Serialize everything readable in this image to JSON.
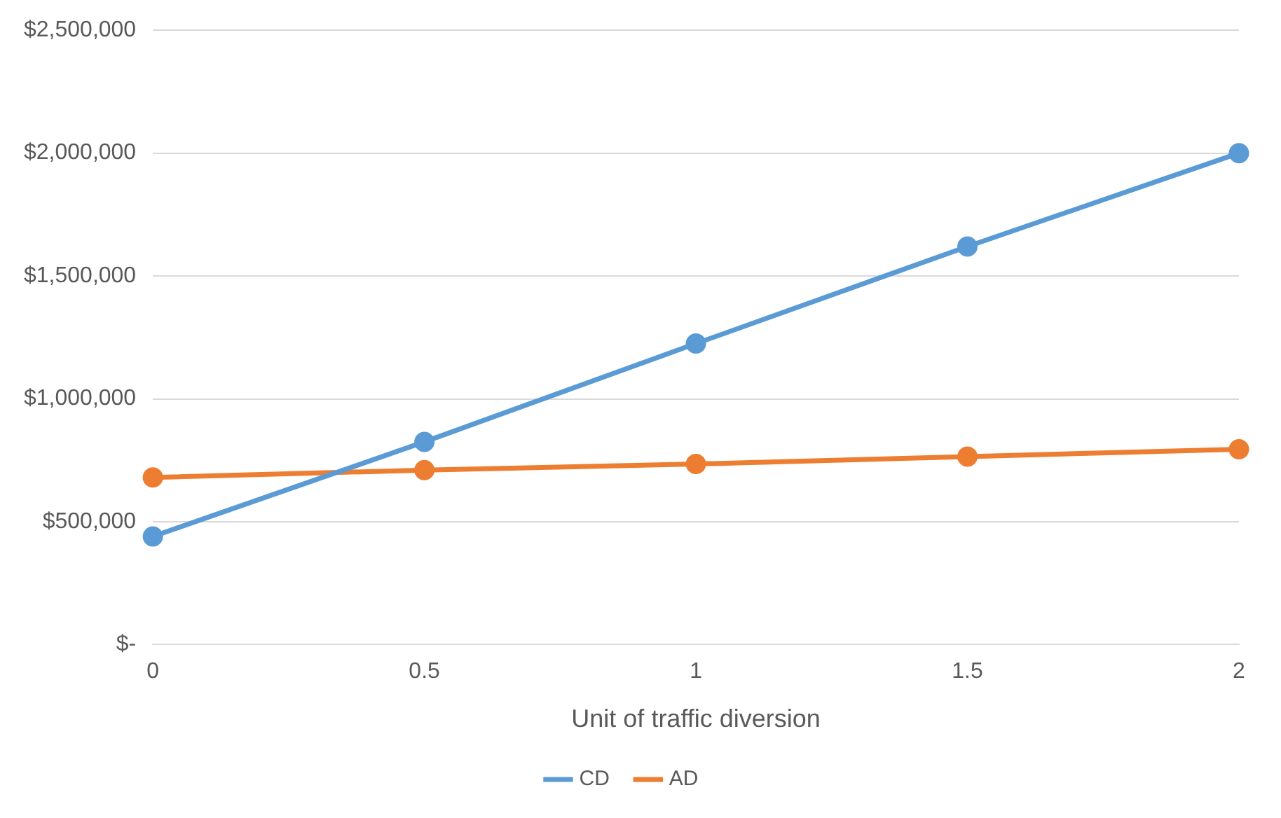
{
  "chart_data": {
    "type": "line",
    "xlabel": "Unit of traffic diversion",
    "categories": [
      "0",
      "0.5",
      "1",
      "1.5",
      "2"
    ],
    "series": [
      {
        "name": "CD",
        "color": "#5b9bd5",
        "values": [
          440000,
          825000,
          1225000,
          1620000,
          2000000
        ]
      },
      {
        "name": "AD",
        "color": "#ed7d31",
        "values": [
          680000,
          710000,
          735000,
          765000,
          795000
        ]
      }
    ],
    "ylim": [
      0,
      2500000
    ],
    "yticks": [
      {
        "value": 0,
        "label": "$-"
      },
      {
        "value": 500000,
        "label": "$500,000"
      },
      {
        "value": 1000000,
        "label": "$1,000,000"
      },
      {
        "value": 1500000,
        "label": "$1,500,000"
      },
      {
        "value": 2000000,
        "label": "$2,000,000"
      },
      {
        "value": 2500000,
        "label": "$2,500,000"
      }
    ],
    "grid": "y",
    "legend": "bottom",
    "marker": "circle",
    "line_style": "solid"
  }
}
